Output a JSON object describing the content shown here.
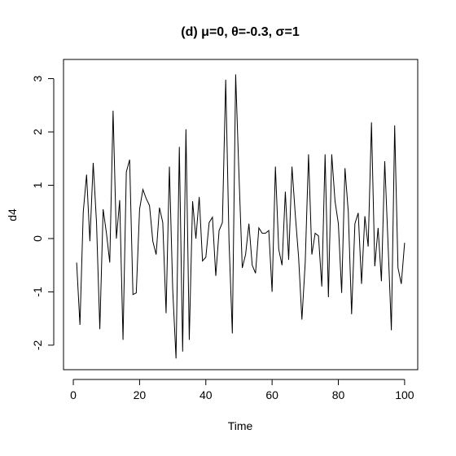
{
  "chart_data": {
    "type": "line",
    "title": "(d) μ=0, θ=-0.3, σ=1",
    "x_label": "Time",
    "y_label": "d4",
    "x": [
      1,
      2,
      3,
      4,
      5,
      6,
      7,
      8,
      9,
      10,
      11,
      12,
      13,
      14,
      15,
      16,
      17,
      18,
      19,
      20,
      21,
      22,
      23,
      24,
      25,
      26,
      27,
      28,
      29,
      30,
      31,
      32,
      33,
      34,
      35,
      36,
      37,
      38,
      39,
      40,
      41,
      42,
      43,
      44,
      45,
      46,
      47,
      48,
      49,
      50,
      51,
      52,
      53,
      54,
      55,
      56,
      57,
      58,
      59,
      60,
      61,
      62,
      63,
      64,
      65,
      66,
      67,
      68,
      69,
      70,
      71,
      72,
      73,
      74,
      75,
      76,
      77,
      78,
      79,
      80,
      81,
      82,
      83,
      84,
      85,
      86,
      87,
      88,
      89,
      90,
      91,
      92,
      93,
      94,
      95,
      96,
      97,
      98,
      99,
      100
    ],
    "series": [
      {
        "name": "d4",
        "color": "#000000",
        "values": [
          -0.45,
          -1.62,
          0.5,
          1.2,
          -0.05,
          1.42,
          0.3,
          -1.7,
          0.55,
          0.1,
          -0.45,
          2.4,
          0.0,
          0.72,
          -1.9,
          1.25,
          1.48,
          -1.05,
          -1.02,
          0.55,
          0.92,
          0.75,
          0.62,
          -0.05,
          -0.3,
          0.58,
          0.3,
          -1.4,
          1.35,
          -0.95,
          -2.25,
          1.72,
          -2.12,
          2.05,
          -1.9,
          0.7,
          0.0,
          0.78,
          -0.42,
          -0.35,
          0.3,
          0.4,
          -0.7,
          0.15,
          0.3,
          2.98,
          -0.05,
          -1.78,
          3.08,
          1.2,
          -0.55,
          -0.3,
          0.28,
          -0.5,
          -0.65,
          0.2,
          0.1,
          0.1,
          0.15,
          -1.0,
          1.35,
          -0.2,
          -0.5,
          0.88,
          -0.4,
          1.35,
          0.45,
          -0.35,
          -1.52,
          -0.45,
          1.58,
          -0.3,
          0.1,
          0.05,
          -0.9,
          1.58,
          -1.1,
          1.58,
          0.7,
          0.28,
          -1.02,
          1.32,
          0.5,
          -1.42,
          0.28,
          0.48,
          -0.85,
          0.42,
          -0.15,
          2.18,
          -0.52,
          0.2,
          -0.8,
          1.45,
          -0.1,
          -1.72,
          2.12,
          -0.55,
          -0.85,
          -0.08
        ]
      }
    ],
    "xlim": [
      -2.96,
      103.96
    ],
    "ylim": [
      -2.46,
      3.36
    ],
    "xticks": [
      0,
      20,
      40,
      60,
      80,
      100
    ],
    "yticks": [
      -2,
      -1,
      0,
      1,
      2,
      3
    ]
  }
}
